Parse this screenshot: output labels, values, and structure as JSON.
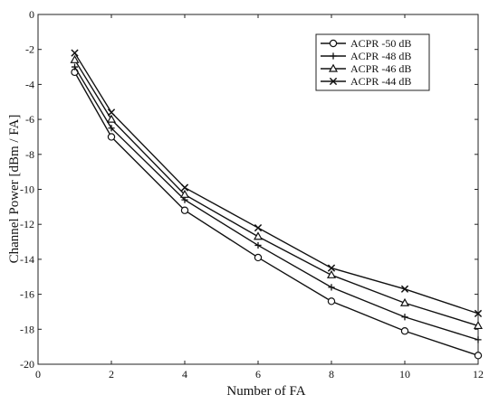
{
  "chart_data": {
    "type": "line",
    "title": "",
    "xlabel": "Number of FA",
    "ylabel": "Channel Power [dBm / FA]",
    "xlim": [
      0,
      12
    ],
    "ylim": [
      -20,
      0
    ],
    "xticks": [
      0,
      2,
      4,
      6,
      8,
      10,
      12
    ],
    "yticks": [
      0,
      -2,
      -4,
      -6,
      -8,
      -10,
      -12,
      -14,
      -16,
      -18,
      -20
    ],
    "grid": false,
    "legend_position": "top-right",
    "x": [
      1,
      2,
      4,
      6,
      8,
      10,
      12
    ],
    "series": [
      {
        "name": "ACPR -50 dB",
        "marker": "circle",
        "values": [
          -3.3,
          -7.0,
          -11.2,
          -13.9,
          -16.4,
          -18.1,
          -19.5
        ]
      },
      {
        "name": "ACPR -48 dB",
        "marker": "plus",
        "values": [
          -3.0,
          -6.5,
          -10.6,
          -13.2,
          -15.6,
          -17.3,
          -18.6
        ]
      },
      {
        "name": "ACPR -46 dB",
        "marker": "triangle",
        "values": [
          -2.6,
          -6.0,
          -10.3,
          -12.7,
          -14.9,
          -16.5,
          -17.8
        ]
      },
      {
        "name": "ACPR -44 dB",
        "marker": "cross",
        "values": [
          -2.2,
          -5.6,
          -9.9,
          -12.2,
          -14.5,
          -15.7,
          -17.1
        ]
      }
    ]
  }
}
